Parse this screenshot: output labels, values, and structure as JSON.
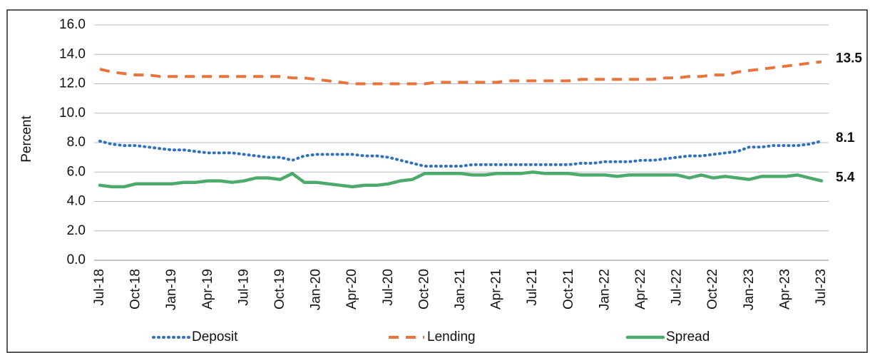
{
  "chart_data": {
    "type": "line",
    "y_label": "Percent",
    "categories": [
      "Jul-18",
      null,
      null,
      "Oct-18",
      null,
      null,
      "Jan-19",
      null,
      null,
      "Apr-19",
      null,
      null,
      "Jul-19",
      null,
      null,
      "Oct-19",
      null,
      null,
      "Jan-20",
      null,
      null,
      "Apr-20",
      null,
      null,
      "Jul-20",
      null,
      null,
      "Oct-20",
      null,
      null,
      "Jan-21",
      null,
      null,
      "Apr-21",
      null,
      null,
      "Jul-21",
      null,
      null,
      "Oct-21",
      null,
      null,
      "Jan-22",
      null,
      null,
      "Apr-22",
      null,
      null,
      "Jul-22",
      null,
      null,
      "Oct-22",
      null,
      null,
      "Jan-23",
      null,
      null,
      "Apr-23",
      null,
      null,
      "Jul-23"
    ],
    "series": [
      {
        "name": "Deposit",
        "color": "#2f6fc4",
        "style": "dotted",
        "end_label": "8.1",
        "values": [
          8.1,
          7.9,
          7.8,
          7.8,
          7.7,
          7.6,
          7.5,
          7.5,
          7.4,
          7.3,
          7.3,
          7.3,
          7.2,
          7.1,
          7.0,
          7.0,
          6.8,
          7.1,
          7.2,
          7.2,
          7.2,
          7.2,
          7.1,
          7.1,
          7.0,
          6.8,
          6.6,
          6.4,
          6.4,
          6.4,
          6.4,
          6.5,
          6.5,
          6.5,
          6.5,
          6.5,
          6.5,
          6.5,
          6.5,
          6.5,
          6.6,
          6.6,
          6.7,
          6.7,
          6.7,
          6.8,
          6.8,
          6.9,
          7.0,
          7.1,
          7.1,
          7.2,
          7.3,
          7.4,
          7.7,
          7.7,
          7.8,
          7.8,
          7.8,
          7.9,
          8.1
        ]
      },
      {
        "name": "Lending",
        "color": "#e8743b",
        "style": "dashed",
        "end_label": "13.5",
        "values": [
          13.0,
          12.8,
          12.7,
          12.6,
          12.6,
          12.5,
          12.5,
          12.5,
          12.5,
          12.5,
          12.5,
          12.5,
          12.5,
          12.5,
          12.5,
          12.5,
          12.4,
          12.4,
          12.3,
          12.2,
          12.1,
          12.0,
          12.0,
          12.0,
          12.0,
          12.0,
          12.0,
          12.0,
          12.1,
          12.1,
          12.1,
          12.1,
          12.1,
          12.1,
          12.2,
          12.2,
          12.2,
          12.2,
          12.2,
          12.2,
          12.3,
          12.3,
          12.3,
          12.3,
          12.3,
          12.3,
          12.3,
          12.4,
          12.4,
          12.5,
          12.5,
          12.6,
          12.6,
          12.8,
          12.9,
          13.0,
          13.1,
          13.2,
          13.3,
          13.4,
          13.5
        ]
      },
      {
        "name": "Spread",
        "color": "#4caa6c",
        "style": "solid",
        "end_label": "5.4",
        "values": [
          5.1,
          5.0,
          5.0,
          5.2,
          5.2,
          5.2,
          5.2,
          5.3,
          5.3,
          5.4,
          5.4,
          5.3,
          5.4,
          5.6,
          5.6,
          5.5,
          5.9,
          5.3,
          5.3,
          5.2,
          5.1,
          5.0,
          5.1,
          5.1,
          5.2,
          5.4,
          5.5,
          5.9,
          5.9,
          5.9,
          5.9,
          5.8,
          5.8,
          5.9,
          5.9,
          5.9,
          6.0,
          5.9,
          5.9,
          5.9,
          5.8,
          5.8,
          5.8,
          5.7,
          5.8,
          5.8,
          5.8,
          5.8,
          5.8,
          5.6,
          5.8,
          5.6,
          5.7,
          5.6,
          5.5,
          5.7,
          5.7,
          5.7,
          5.8,
          5.6,
          5.4
        ]
      }
    ],
    "ylim": [
      0,
      16
    ],
    "yticks": [
      {
        "value": 0,
        "label": "0.0"
      },
      {
        "value": 2,
        "label": "2.0"
      },
      {
        "value": 4,
        "label": "4.0"
      },
      {
        "value": 6,
        "label": "6.0"
      },
      {
        "value": 8,
        "label": "8.0"
      },
      {
        "value": 10,
        "label": "10.0"
      },
      {
        "value": 12,
        "label": "12.0"
      },
      {
        "value": 14,
        "label": "14.0"
      },
      {
        "value": 16,
        "label": "16.0"
      }
    ],
    "grid": true,
    "legend": "bottom"
  }
}
